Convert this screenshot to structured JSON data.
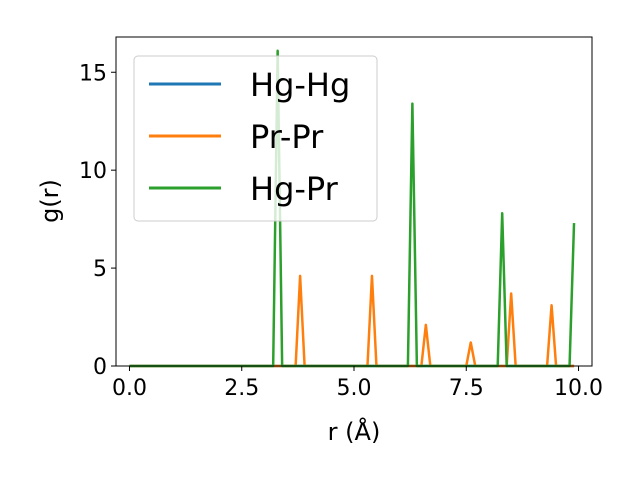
{
  "chart_data": {
    "type": "line",
    "xlabel": "r (Å)",
    "ylabel": "g(r)",
    "xlim": [
      -0.3,
      10.3
    ],
    "ylim": [
      0,
      16.8
    ],
    "xticks": [
      0.0,
      2.5,
      5.0,
      7.5,
      10.0
    ],
    "xtick_labels": [
      "0.0",
      "2.5",
      "5.0",
      "7.5",
      "10.0"
    ],
    "yticks": [
      0,
      5,
      10,
      15
    ],
    "ytick_labels": [
      "0",
      "5",
      "10",
      "15"
    ],
    "grid": false,
    "legend_position": "top-left",
    "series": [
      {
        "name": "Hg-Hg",
        "color": "#1f77b4",
        "x": [
          0.0,
          3.2,
          9.9
        ],
        "y": [
          0,
          0,
          0
        ]
      },
      {
        "name": "Pr-Pr",
        "color": "#ff7f0e",
        "x": [
          0.0,
          3.7,
          3.8,
          3.9,
          5.3,
          5.4,
          5.5,
          6.5,
          6.6,
          6.7,
          7.5,
          7.6,
          7.7,
          8.4,
          8.5,
          8.6,
          9.3,
          9.4,
          9.5,
          9.9
        ],
        "y": [
          0,
          0,
          4.6,
          0,
          0,
          4.6,
          0,
          0,
          2.1,
          0,
          0,
          1.2,
          0,
          0,
          3.7,
          0,
          0,
          3.1,
          0,
          0
        ]
      },
      {
        "name": "Hg-Pr",
        "color": "#2ca02c",
        "x": [
          0.0,
          3.2,
          3.3,
          3.4,
          6.2,
          6.3,
          6.4,
          8.2,
          8.3,
          8.4,
          9.8,
          9.9
        ],
        "y": [
          0,
          0,
          16.1,
          0,
          0,
          13.4,
          0,
          0,
          7.8,
          0,
          0,
          7.3
        ]
      }
    ]
  }
}
